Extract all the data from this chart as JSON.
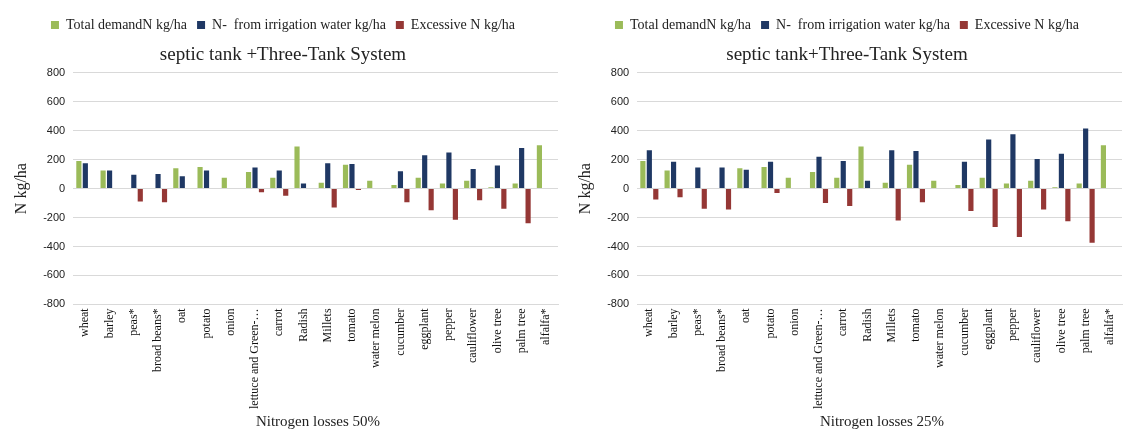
{
  "chart_data": [
    {
      "type": "bar",
      "title": "septic tank +Three-Tank System",
      "xlabel": "Nitrogen losses 50%",
      "ylabel": "N kg/ha",
      "categories": [
        "wheat",
        "barley",
        "peas*",
        "broad beans*",
        "oat",
        "potato",
        "onion",
        "lettuce and Green-…",
        "carrot",
        "Radish",
        "Millets",
        "tomato",
        "water melon",
        "cucumber",
        "eggplant",
        "pepper",
        "cauliflower",
        "olive tree",
        "palm tree",
        "alfalfa*"
      ],
      "series": [
        {
          "name": "Total demandN kg/ha",
          "color": "#9bbb59",
          "values": [
            190,
            125,
            null,
            null,
            140,
            150,
            75,
            115,
            75,
            290,
            40,
            165,
            55,
            25,
            75,
            35,
            55,
            10,
            35,
            300
          ]
        },
        {
          "name": "N-  from irrigation water kg/ha",
          "color": "#1f3864",
          "values": [
            175,
            125,
            95,
            100,
            85,
            125,
            null,
            145,
            125,
            35,
            175,
            170,
            null,
            120,
            230,
            250,
            135,
            160,
            280,
            null
          ]
        },
        {
          "name": "Excessive N kg/ha",
          "color": "#953735",
          "values": [
            null,
            null,
            -90,
            -95,
            null,
            null,
            null,
            -25,
            -50,
            null,
            -130,
            -10,
            null,
            -95,
            -150,
            -215,
            -80,
            -140,
            -240,
            null
          ]
        }
      ],
      "ylim": [
        -800,
        800
      ],
      "yticks": [
        -800,
        -600,
        -400,
        -200,
        0,
        200,
        400,
        600,
        800
      ],
      "grid": "y",
      "legend": "top"
    },
    {
      "type": "bar",
      "title": "septic tank+Three-Tank System",
      "xlabel": "Nitrogen losses 25%",
      "ylabel": "N kg/ha",
      "categories": [
        "wheat",
        "barley",
        "peas*",
        "broad beans*",
        "oat",
        "potato",
        "onion",
        "lettuce and Green-…",
        "carrot",
        "Radish",
        "Millets",
        "tomato",
        "water melon",
        "cucumber",
        "eggplant",
        "pepper",
        "cauliflower",
        "olive tree",
        "palm tree",
        "alfalfa*"
      ],
      "series": [
        {
          "name": "Total demandN kg/ha",
          "color": "#9bbb59",
          "values": [
            190,
            125,
            null,
            null,
            140,
            150,
            75,
            115,
            75,
            290,
            40,
            165,
            55,
            25,
            75,
            35,
            55,
            10,
            35,
            300
          ]
        },
        {
          "name": "N-  from irrigation water kg/ha",
          "color": "#1f3864",
          "values": [
            265,
            185,
            145,
            145,
            130,
            185,
            null,
            220,
            190,
            55,
            265,
            260,
            null,
            185,
            340,
            375,
            205,
            240,
            415,
            null
          ]
        },
        {
          "name": "Excessive N kg/ha",
          "color": "#953735",
          "values": [
            -75,
            -60,
            -140,
            -145,
            null,
            -30,
            null,
            -100,
            -120,
            null,
            -220,
            -95,
            null,
            -155,
            -265,
            -335,
            -145,
            -225,
            -375,
            null
          ]
        }
      ],
      "ylim": [
        -800,
        800
      ],
      "yticks": [
        -800,
        -600,
        -400,
        -200,
        0,
        200,
        400,
        600,
        800
      ],
      "grid": "y",
      "legend": "top"
    }
  ]
}
